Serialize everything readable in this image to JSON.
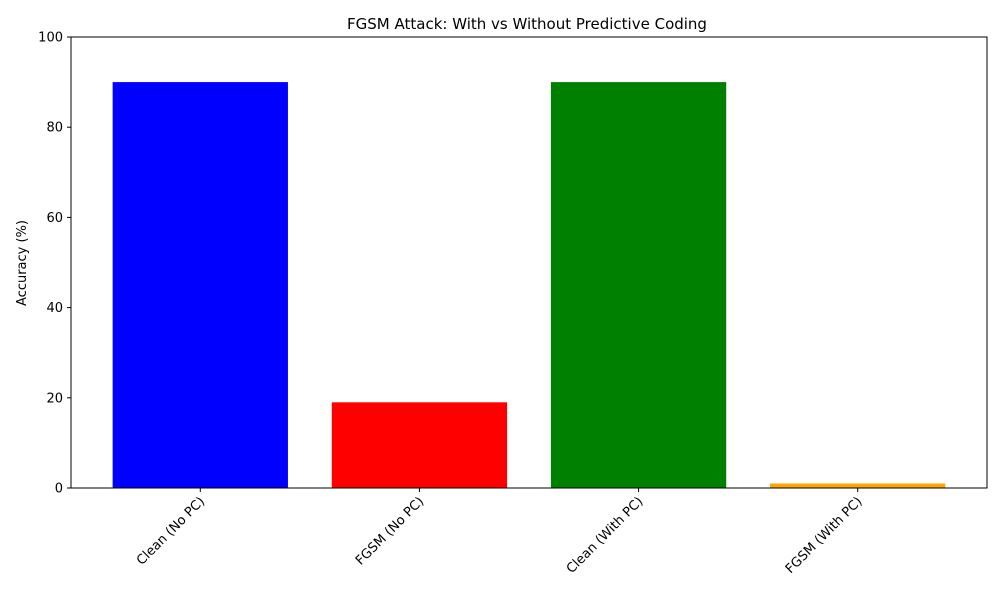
{
  "chart_data": {
    "type": "bar",
    "title": "FGSM Attack: With vs Without Predictive Coding",
    "xlabel": "",
    "ylabel": "Accuracy (%)",
    "categories": [
      "Clean (No PC)",
      "FGSM (No PC)",
      "Clean (With PC)",
      "FGSM (With PC)"
    ],
    "values": [
      90,
      19,
      90,
      1
    ],
    "colors": [
      "#0000ff",
      "#ff0000",
      "#008000",
      "#ffa500"
    ],
    "ylim": [
      0,
      100
    ],
    "yticks": [
      "0",
      "20",
      "40",
      "60",
      "80",
      "100"
    ],
    "grid": false,
    "legend": "none",
    "xtick_rotation_deg": 45
  }
}
